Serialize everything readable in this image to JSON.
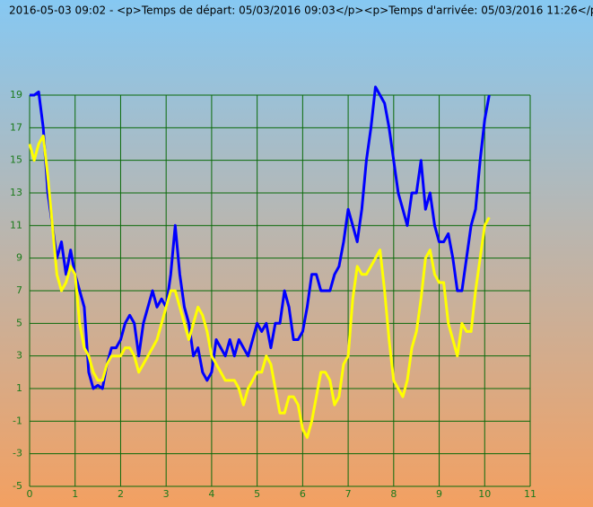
{
  "chart_data": {
    "type": "line",
    "title": "2016-05-03 09:02 - <p>Temps de départ: 05/03/2016 09:03</p><p>Temps d'arrivée: 05/03/2016 11:26</p><p",
    "x": [
      0,
      0.1,
      0.2,
      0.3,
      0.4,
      0.5,
      0.6,
      0.7,
      0.8,
      0.9,
      1,
      1.1,
      1.2,
      1.3,
      1.4,
      1.5,
      1.6,
      1.7,
      1.8,
      1.9,
      2,
      2.1,
      2.2,
      2.3,
      2.4,
      2.5,
      2.6,
      2.7,
      2.8,
      2.9,
      3,
      3.1,
      3.2,
      3.3,
      3.4,
      3.5,
      3.6,
      3.7,
      3.8,
      3.9,
      4,
      4.1,
      4.2,
      4.3,
      4.4,
      4.5,
      4.6,
      4.7,
      4.8,
      4.9,
      5,
      5.1,
      5.2,
      5.3,
      5.4,
      5.5,
      5.6,
      5.7,
      5.8,
      5.9,
      6,
      6.1,
      6.2,
      6.3,
      6.4,
      6.5,
      6.6,
      6.7,
      6.8,
      6.9,
      7,
      7.1,
      7.2,
      7.3,
      7.4,
      7.5,
      7.6,
      7.7,
      7.8,
      7.9,
      8,
      8.1,
      8.2,
      8.3,
      8.4,
      8.5,
      8.6,
      8.7,
      8.8,
      8.9,
      9,
      9.1,
      9.2,
      9.3,
      9.4,
      9.5,
      9.6,
      9.7,
      9.8,
      9.9,
      10,
      10.1
    ],
    "series": [
      {
        "color": "#0000ff",
        "values": [
          19,
          19,
          19.2,
          17,
          13,
          11,
          9,
          10,
          8,
          9.5,
          8,
          7,
          6,
          2,
          1,
          1.2,
          1,
          2.5,
          3.5,
          3.5,
          4,
          5,
          5.5,
          5,
          3,
          5,
          6,
          7,
          6,
          6.5,
          6,
          8,
          11,
          8,
          6,
          5,
          3,
          3.5,
          2,
          1.5,
          2,
          4,
          3.5,
          3,
          4,
          3,
          4,
          3.5,
          3,
          4,
          5,
          4.5,
          5,
          3.5,
          5,
          5,
          7,
          6,
          4,
          4,
          4.5,
          6,
          8,
          8,
          7,
          7,
          7,
          8,
          8.5,
          10,
          12,
          11,
          10,
          12,
          15,
          17,
          19.5,
          19,
          18.5,
          17,
          15,
          13,
          12,
          11,
          13,
          13,
          15,
          12,
          13,
          11,
          10,
          10,
          10.5,
          9,
          7,
          7,
          9,
          11,
          12,
          15,
          17.5,
          19
        ]
      },
      {
        "color": "#ffff00",
        "values": [
          16,
          15,
          16,
          16.5,
          14,
          11,
          8,
          7,
          7.5,
          8.5,
          8,
          5,
          3.5,
          3,
          2,
          1.5,
          1.5,
          2.5,
          3,
          3,
          3,
          3.5,
          3.5,
          3,
          2,
          2.5,
          3,
          3.5,
          4,
          5,
          6,
          7,
          7,
          6,
          5,
          4,
          5,
          6,
          5.5,
          4.5,
          3,
          2.5,
          2,
          1.5,
          1.5,
          1.5,
          1,
          0,
          1,
          1.5,
          2,
          2,
          3,
          2.5,
          1,
          -0.5,
          -0.5,
          0.5,
          0.5,
          0,
          -1.5,
          -2,
          -1,
          0.5,
          2,
          2,
          1.5,
          0,
          0.5,
          2.5,
          3,
          6.5,
          8.5,
          8,
          8,
          8.5,
          9,
          9.5,
          7,
          4,
          1.5,
          1,
          0.5,
          1.5,
          3.5,
          4.5,
          6.5,
          9,
          9.5,
          8,
          7.5,
          7.5,
          5,
          4,
          3,
          5,
          4.5,
          4.5,
          7,
          9,
          11,
          11.5
        ]
      }
    ],
    "xlim": [
      0,
      11
    ],
    "xticks": [
      0,
      1,
      2,
      3,
      4,
      5,
      6,
      7,
      8,
      9,
      10,
      11
    ],
    "ylim": [
      -5,
      19
    ],
    "yticks": [
      -5,
      -3,
      -1,
      1,
      3,
      5,
      7,
      9,
      11,
      13,
      15,
      17,
      19
    ],
    "grid": true
  }
}
